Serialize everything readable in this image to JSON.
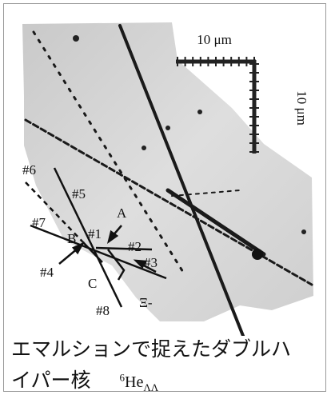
{
  "scale_bar": {
    "horizontal_label": "10 μm",
    "vertical_label": "10 μm"
  },
  "labels": [
    "#6",
    "#5",
    "#7",
    "B",
    "#1",
    "A",
    "#2",
    "#4",
    "#3",
    "C",
    "#8",
    "Ξ-"
  ],
  "caption": {
    "line1": "エマルションで捉えたダブルハ",
    "line2": "イパー核",
    "isotope_mass": "6",
    "isotope_symbol": "He",
    "isotope_subscript": "ΛΛ"
  }
}
